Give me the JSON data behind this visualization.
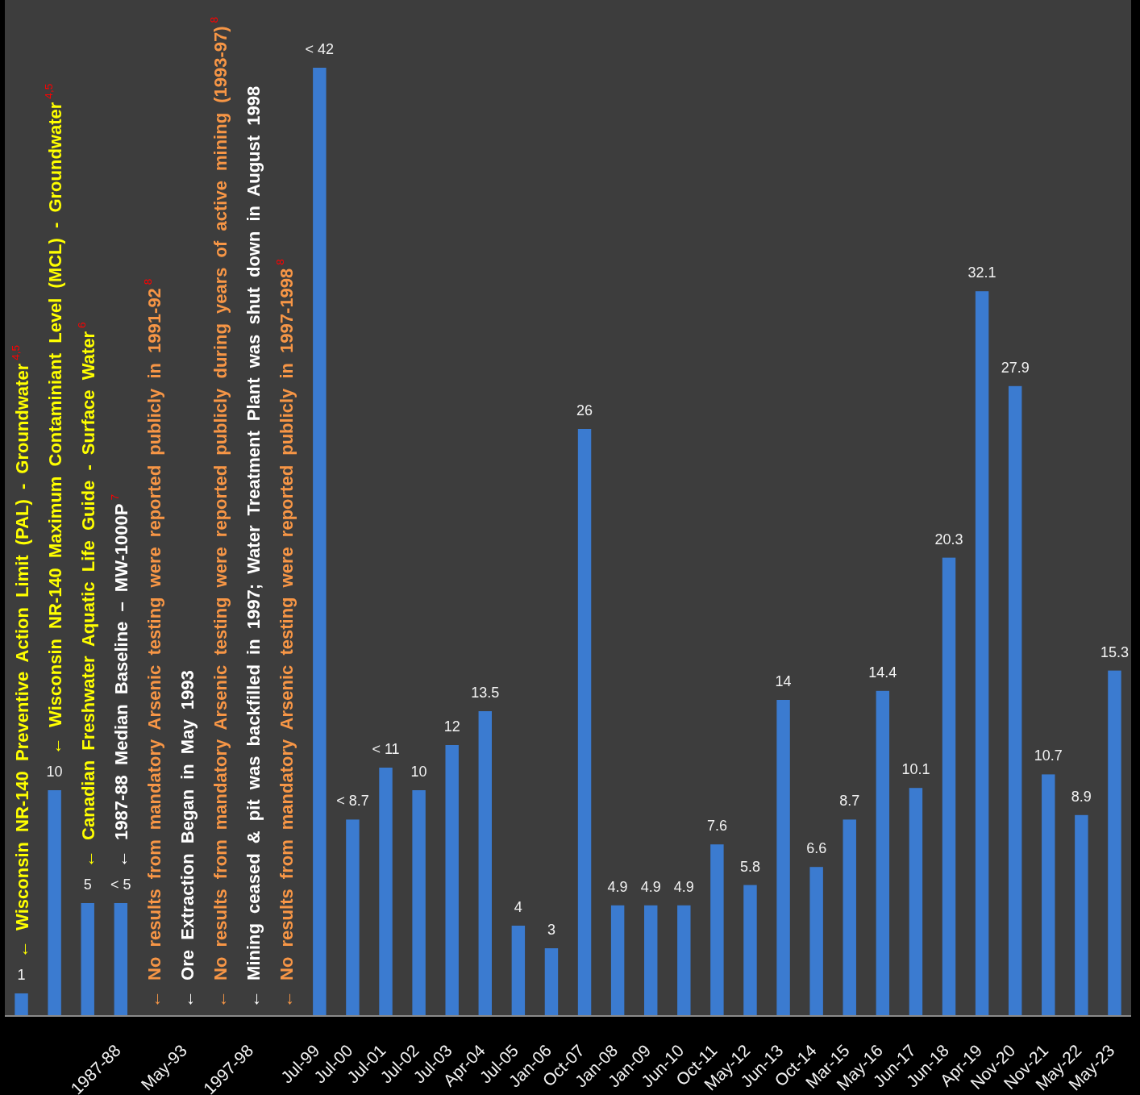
{
  "chart_data": {
    "type": "bar",
    "categories": [
      null,
      null,
      null,
      "1987-88",
      null,
      "May-93",
      null,
      "1997-98",
      null,
      "Jul-99",
      "Jul-00",
      "Jul-01",
      "Jul-02",
      "Jul-03",
      "Apr-04",
      "Jul-05",
      "Jan-06",
      "Oct-07",
      "Jan-08",
      "Jan-09",
      "Jun-10",
      "Oct-11",
      "May-12",
      "Jun-13",
      "Oct-14",
      "Mar-15",
      "May-16",
      "Jun-17",
      "Jun-18",
      "Apr-19",
      "Nov-20",
      "Nov-21",
      "May-22",
      "May-23"
    ],
    "values": [
      1,
      10,
      5,
      5,
      null,
      null,
      null,
      null,
      null,
      42,
      8.7,
      11,
      10,
      12,
      13.5,
      4,
      3,
      26,
      4.9,
      4.9,
      4.9,
      7.6,
      5.8,
      14,
      6.6,
      8.7,
      14.4,
      10.1,
      20.3,
      32.1,
      27.9,
      10.7,
      8.9,
      15.3
    ],
    "value_labels": [
      "1",
      "10",
      "5",
      "< 5",
      null,
      null,
      null,
      null,
      null,
      "< 42",
      "< 8.7",
      "< 11",
      "10",
      "12",
      "13.5",
      "4",
      "3",
      "26",
      "4.9",
      "4.9",
      "4.9",
      "7.6",
      "5.8",
      "14",
      "6.6",
      "8.7",
      "14.4",
      "10.1",
      "20.3",
      "32.1",
      "27.9",
      "10.7",
      "8.9",
      "15.3"
    ],
    "color": "#3b7bd0",
    "ylim": [
      0,
      45
    ],
    "tick_labels": "x",
    "annotations": [
      "← Wisconsin NR-140 Preventive Action Limit (PAL) - Groundwater$^{4,5}$",
      "← Wisconsin NR-140 Maximum Contaminiant Level (MCL) - Groundwater$^{4,5}$",
      "← Canadian Freshwater Aquatic Life Guide - Surface Water$^{6}$",
      "← 1987-88 Median Baseline – MW-1000P$^{7}$",
      "← No results from mandatory Arsenic testing were reported publicly in 1991-92$^{8}$",
      "← Ore Extraction Began in May 1993",
      "← No results from mandatory Arsenic testing were reported publicly during years of active mining (1993-97)$^{8}$",
      "← Mining ceased & pit was backfilled in 1997; Water Treatment Plant was shut down in August 1998",
      "← No results from mandatory Arsenic testing were reported publicly in 1997-1998$^{8}$"
    ]
  }
}
